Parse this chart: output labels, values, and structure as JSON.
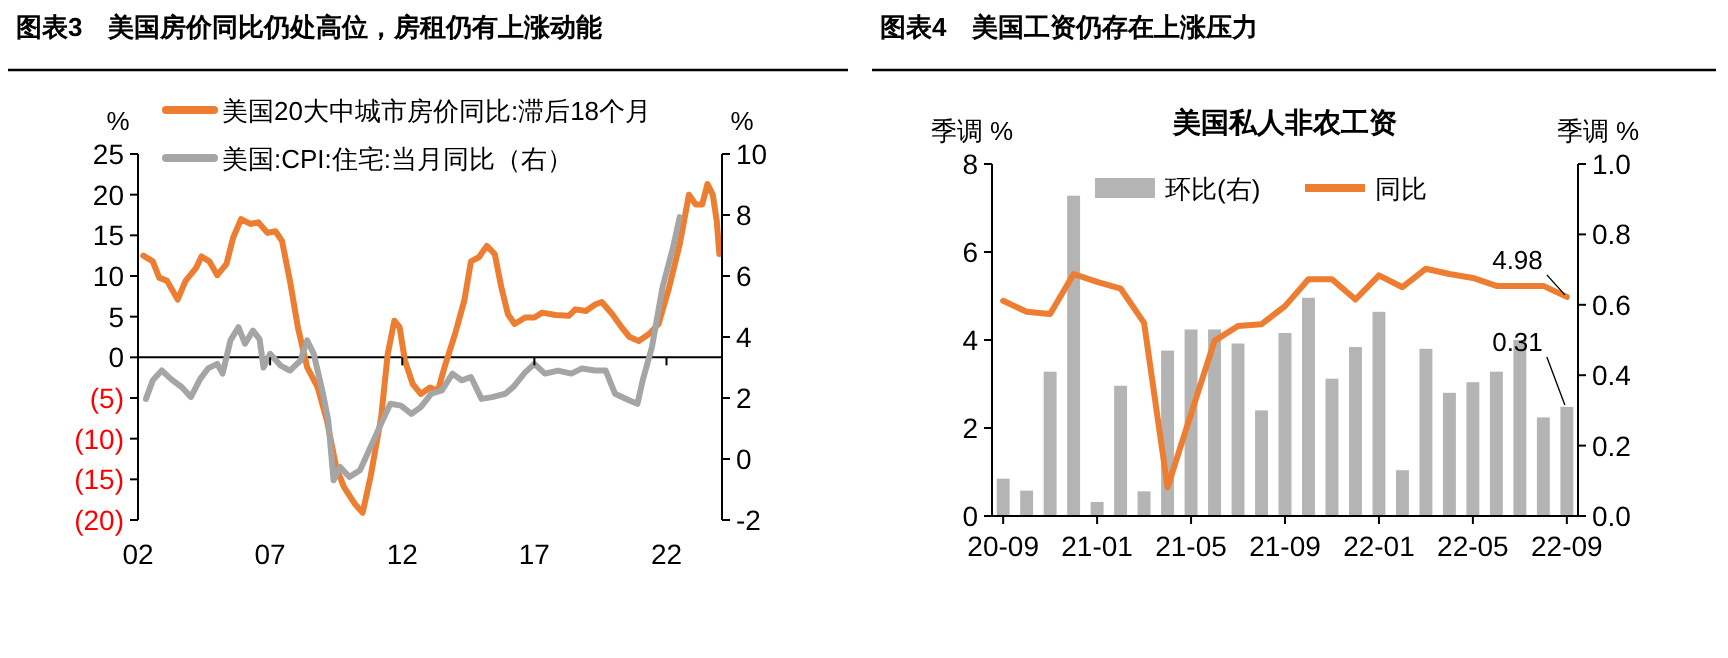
{
  "chart_data": [
    {
      "type": "line",
      "title": "图表3　美国房价同比仍处高位，房租仍有上涨动能",
      "ylabel": "%",
      "y2label": "%",
      "xlim": [
        2002,
        2024.1
      ],
      "xticks": [
        {
          "value": 2002,
          "label": "02"
        },
        {
          "value": 2007,
          "label": "07"
        },
        {
          "value": 2012,
          "label": "12"
        },
        {
          "value": 2017,
          "label": "17"
        },
        {
          "value": 2022,
          "label": "22"
        }
      ],
      "ylim": [
        -20,
        25
      ],
      "yticks": [
        {
          "value": -20,
          "label": "(20)"
        },
        {
          "value": -15,
          "label": "(15)"
        },
        {
          "value": -10,
          "label": "(10)"
        },
        {
          "value": -5,
          "label": "(5)"
        },
        0,
        5,
        10,
        15,
        20,
        25
      ],
      "y2lim": [
        -2,
        10
      ],
      "y2ticks": [
        -2,
        0,
        2,
        4,
        6,
        8,
        10
      ],
      "ref_lines": [
        {
          "axis": "y",
          "value": 0,
          "color": "#000000"
        }
      ],
      "legend": "top left",
      "series": [
        {
          "name": "美国20大中城市房价同比:滞后18个月",
          "color": "#ed7d31",
          "x": [
            2002.2,
            2002.56,
            2002.8,
            2003.1,
            2003.5,
            2003.8,
            2004.2,
            2004.4,
            2004.7,
            2005.0,
            2005.35,
            2005.6,
            2005.9,
            2006.25,
            2006.55,
            2006.9,
            2007.2,
            2007.45,
            2007.75,
            2008.05,
            2008.4,
            2008.8,
            2009.15,
            2009.5,
            2009.8,
            2010.2,
            2010.5,
            2010.8,
            2011.2,
            2011.45,
            2011.7,
            2011.9,
            2012.1,
            2012.4,
            2012.7,
            2013.05,
            2013.35,
            2013.6,
            2014.0,
            2014.35,
            2014.6,
            2014.9,
            2015.2,
            2015.5,
            2015.75,
            2016.0,
            2016.25,
            2016.65,
            2017.0,
            2017.3,
            2017.8,
            2018.3,
            2018.55,
            2018.95,
            2019.3,
            2019.55,
            2019.95,
            2020.3,
            2020.6,
            2020.95,
            2021.35,
            2021.7,
            2022.1,
            2022.5,
            2022.85,
            2023.1,
            2023.35,
            2023.55,
            2023.75,
            2023.9,
            2024.0
          ],
          "values": [
            12.5,
            11.8,
            9.8,
            9.4,
            7.1,
            9.4,
            11,
            12.4,
            11.8,
            10.1,
            11.5,
            14.7,
            17,
            16.4,
            16.6,
            15.3,
            15.5,
            14.3,
            9.4,
            3.7,
            -1.2,
            -3.7,
            -7.8,
            -13.5,
            -16,
            -18,
            -19.1,
            -14.7,
            -7.4,
            0.4,
            4.5,
            3.7,
            -0.4,
            -3.3,
            -4.5,
            -3.7,
            -4.1,
            -1.2,
            2.9,
            7,
            11.8,
            12.3,
            13.7,
            12.7,
            8.6,
            5.3,
            4.1,
            4.9,
            4.9,
            5.5,
            5.2,
            5.1,
            5.9,
            5.7,
            6.5,
            6.8,
            5.3,
            3.7,
            2.5,
            2.0,
            2.9,
            4.1,
            8.6,
            13.9,
            20,
            18.8,
            18.8,
            21.3,
            20,
            16.8,
            12.7
          ]
        },
        {
          "name": "美国:CPI:住宅:当月同比（右）",
          "color": "#a5a5a5",
          "axis": "y2",
          "x": [
            2002.3,
            2002.56,
            2002.9,
            2003.25,
            2003.65,
            2004.0,
            2004.35,
            2004.65,
            2005.0,
            2005.2,
            2005.5,
            2005.8,
            2006.05,
            2006.35,
            2006.6,
            2006.75,
            2007.0,
            2007.4,
            2007.75,
            2008.15,
            2008.4,
            2008.65,
            2009.0,
            2009.2,
            2009.4,
            2009.65,
            2010.0,
            2010.4,
            2010.8,
            2011.2,
            2011.55,
            2011.95,
            2012.35,
            2012.7,
            2013.1,
            2013.5,
            2013.9,
            2014.25,
            2014.6,
            2015.0,
            2015.4,
            2015.9,
            2016.2,
            2016.65,
            2017.0,
            2017.4,
            2017.9,
            2018.4,
            2018.8,
            2019.3,
            2019.7,
            2020.05,
            2020.6,
            2020.9,
            2021.1,
            2021.45,
            2021.85,
            2022.25,
            2022.5
          ],
          "values": [
            1.97,
            2.58,
            2.9,
            2.62,
            2.36,
            2.03,
            2.62,
            2.97,
            3.12,
            2.8,
            3.89,
            4.32,
            3.78,
            4.21,
            3.93,
            3.0,
            3.45,
            3.06,
            2.9,
            3.23,
            3.89,
            3.45,
            2.14,
            1.27,
            -0.7,
            -0.26,
            -0.59,
            -0.37,
            0.39,
            1.16,
            1.81,
            1.75,
            1.48,
            1.7,
            2.14,
            2.25,
            2.8,
            2.58,
            2.69,
            1.97,
            2.03,
            2.14,
            2.36,
            2.84,
            3.12,
            2.8,
            2.9,
            2.8,
            2.97,
            2.9,
            2.9,
            2.14,
            1.92,
            1.81,
            2.58,
            3.67,
            5.63,
            6.94,
            7.93
          ]
        }
      ]
    },
    {
      "type": "bar",
      "title": "图表4　美国工资仍存在上涨压力",
      "subtitle": "美国私人非农工资",
      "ylabel": "季调 %",
      "y2label": "季调 %",
      "categories": [
        "20-09",
        null,
        null,
        null,
        "21-01",
        null,
        null,
        null,
        "21-05",
        null,
        null,
        null,
        "21-09",
        null,
        null,
        null,
        "22-01",
        null,
        null,
        null,
        "22-05",
        null,
        null,
        null,
        "22-09"
      ],
      "ylim": [
        0,
        8
      ],
      "yticks": [
        0,
        2,
        4,
        6,
        8
      ],
      "y2lim": [
        0,
        1
      ],
      "y2ticks": [
        {
          "value": 0,
          "label": "0.0"
        },
        {
          "value": 0.2,
          "label": "0.2"
        },
        {
          "value": 0.4,
          "label": "0.4"
        },
        {
          "value": 0.6,
          "label": "0.6"
        },
        {
          "value": 0.8,
          "label": "0.8"
        },
        {
          "value": 1,
          "label": "1.0"
        }
      ],
      "legend": "top",
      "series": [
        {
          "name": "环比(右)",
          "type": "bar",
          "axis": "y2",
          "color": "#b4b4b4",
          "values": [
            0.106,
            0.072,
            0.41,
            0.91,
            0.04,
            0.37,
            0.07,
            0.47,
            0.53,
            0.53,
            0.49,
            0.3,
            0.52,
            0.62,
            0.39,
            0.48,
            0.58,
            0.13,
            0.475,
            0.35,
            0.38,
            0.41,
            0.5,
            0.28,
            0.31
          ],
          "value_labels": [
            null,
            null,
            null,
            null,
            null,
            null,
            null,
            null,
            null,
            null,
            null,
            null,
            null,
            null,
            null,
            null,
            null,
            null,
            null,
            null,
            null,
            null,
            null,
            null,
            "0.31"
          ]
        },
        {
          "name": "同比",
          "type": "line",
          "color": "#ed7d31",
          "values": [
            4.89,
            4.64,
            4.59,
            5.5,
            5.32,
            5.17,
            4.39,
            0.65,
            2.32,
            3.98,
            4.32,
            4.36,
            4.77,
            5.38,
            5.38,
            4.92,
            5.47,
            5.2,
            5.62,
            5.5,
            5.41,
            5.23,
            5.23,
            5.23,
            4.98
          ],
          "value_labels": [
            null,
            null,
            null,
            null,
            null,
            null,
            null,
            null,
            null,
            null,
            null,
            null,
            null,
            null,
            null,
            null,
            null,
            null,
            null,
            null,
            null,
            null,
            null,
            null,
            "4.98"
          ]
        }
      ]
    }
  ]
}
